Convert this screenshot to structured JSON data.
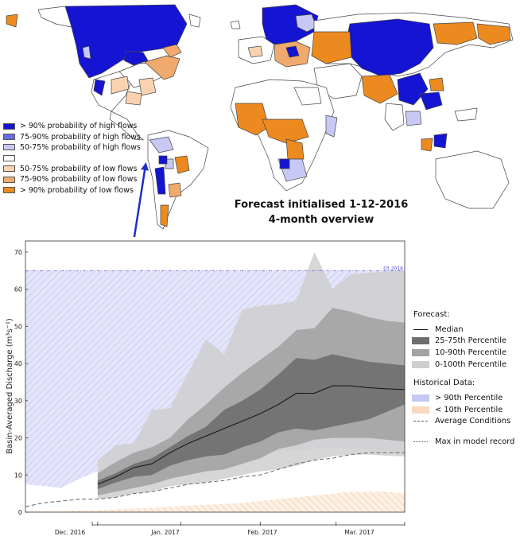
{
  "map": {
    "colors": {
      "high_90": "#1414d2",
      "high_75_90": "#6b6be6",
      "high_50_75": "#c8c8f5",
      "neutral": "#ffffff",
      "low_50_75": "#fad2b0",
      "low_75_90": "#f0aa6e",
      "low_90": "#ec8a20"
    },
    "legend": [
      {
        "label": ">  90% probability of high flows",
        "color": "#1414d2"
      },
      {
        "label": "75-90% probability of high flows",
        "color": "#6b6be6"
      },
      {
        "label": "50-75% probability of high flows",
        "color": "#c8c8f5"
      },
      {
        "label": "",
        "color": "#ffffff"
      },
      {
        "label": "50-75% probability of low flows",
        "color": "#fad2b0"
      },
      {
        "label": "75-90% probability of low flows",
        "color": "#f0aa6e"
      },
      {
        "label": ">  90% probability of low flows",
        "color": "#ec8a20"
      }
    ],
    "title_line1": "Forecast initialised 1-12-2016",
    "title_line2": "4-month overview",
    "arrow_color": "#1c2fc4"
  },
  "chart_data": {
    "type": "area",
    "ylabel": "Basin-Averaged Discharge (m³s⁻¹)",
    "ylabel_main": "Basin-Averaged Discharge (m",
    "ylabel_sup": "3",
    "ylabel_s": "s",
    "ylabel_sup2": "-1",
    "ylabel_end": ")",
    "ylim": [
      0,
      73
    ],
    "yticks": [
      0,
      10,
      20,
      30,
      40,
      50,
      60,
      70
    ],
    "month_labels": [
      "Dec. 2016",
      "Jan. 2017",
      "Feb. 2017",
      "Mar. 2017"
    ],
    "max_record_label": "03.2016",
    "max_in_model_record": 65,
    "forecast": {
      "x": [
        0,
        1,
        2,
        3,
        4,
        5,
        6,
        7,
        8,
        9,
        10,
        11,
        12,
        13,
        14,
        15,
        16,
        17
      ],
      "median": [
        7.5,
        9.5,
        12,
        13,
        16,
        18.5,
        20.5,
        22.5,
        24.5,
        26.5,
        29,
        32,
        32,
        34,
        34,
        33.5,
        33.2,
        33
      ],
      "p25": [
        6.2,
        8,
        9.5,
        10,
        12.5,
        14,
        15,
        15.5,
        17.5,
        19,
        21.5,
        22.5,
        22,
        23,
        24,
        25,
        27,
        29
      ],
      "p75": [
        8.5,
        10.5,
        13,
        14.5,
        17.5,
        20.5,
        23,
        27.5,
        30,
        33,
        37,
        41.5,
        41,
        42.5,
        41.5,
        40.5,
        40,
        39.5
      ],
      "p10": [
        4.5,
        5.5,
        6.5,
        7.5,
        9,
        10,
        11,
        11.5,
        13,
        14.5,
        17,
        18,
        19.5,
        20,
        20,
        20,
        19.5,
        19
      ],
      "p90": [
        10.5,
        13.5,
        16,
        17.5,
        20,
        25,
        29,
        33.5,
        37.5,
        41,
        44.5,
        49,
        49.5,
        55,
        54,
        52.5,
        51.5,
        51
      ],
      "p0": [
        3.5,
        4,
        5,
        5.5,
        7,
        7.5,
        8,
        9,
        10,
        11,
        11.5,
        12.5,
        14,
        15,
        15.5,
        15.5,
        15.2,
        15
      ],
      "p100": [
        14,
        18,
        18.5,
        27.5,
        28,
        37.5,
        46.5,
        42.5,
        54.5,
        55.5,
        56,
        57,
        70,
        60,
        64,
        64.5,
        64.8,
        65
      ]
    },
    "historical": {
      "x": [
        -4,
        -3,
        -2,
        -1,
        0,
        1,
        2,
        3,
        4,
        5,
        6,
        7,
        8,
        9,
        10,
        11,
        12,
        13,
        14,
        15,
        16,
        17
      ],
      "average": [
        1.5,
        2.5,
        3,
        3.5,
        3.5,
        4,
        5,
        5.5,
        6.5,
        7.5,
        8,
        8.5,
        9.5,
        10,
        11.5,
        13,
        14,
        14.5,
        15.5,
        16,
        16,
        16
      ],
      "p90": [
        7.5,
        7,
        6.5,
        9,
        11,
        12.5,
        13,
        12,
        11,
        12,
        13,
        14.5,
        15.5,
        16,
        16.5,
        16.5,
        17,
        17.5,
        17,
        17,
        16.5,
        16
      ],
      "p10": [
        0.2,
        0.3,
        0.3,
        0.4,
        0.5,
        0.8,
        1,
        1.2,
        1.5,
        1.8,
        2,
        2.2,
        2.5,
        3,
        3.5,
        4,
        4.5,
        5,
        5.5,
        5.5,
        5.5,
        5
      ]
    },
    "legend": {
      "forecast_title": "Forecast:",
      "forecast_items": [
        {
          "label": "Median",
          "style": "line",
          "color": "#111111"
        },
        {
          "label": "25-75th Percentile",
          "style": "box",
          "color": "#6e6e6e"
        },
        {
          "label": "10-90th Percentile",
          "style": "box",
          "color": "#a3a3a3"
        },
        {
          "label": "0-100th Percentile",
          "style": "box",
          "color": "#cfcfcf"
        }
      ],
      "historical_title": "Historical Data:",
      "historical_items": [
        {
          "label": "> 90th Percentile",
          "style": "box",
          "color": "#c6c9f3"
        },
        {
          "label": "< 10th Percentile",
          "style": "box",
          "color": "#fbd9bf"
        },
        {
          "label": "Average Conditions",
          "style": "dash",
          "color": "#555555"
        }
      ],
      "max_item": {
        "label": "Max in model record",
        "style": "dashdot",
        "color": "#555555"
      }
    }
  }
}
